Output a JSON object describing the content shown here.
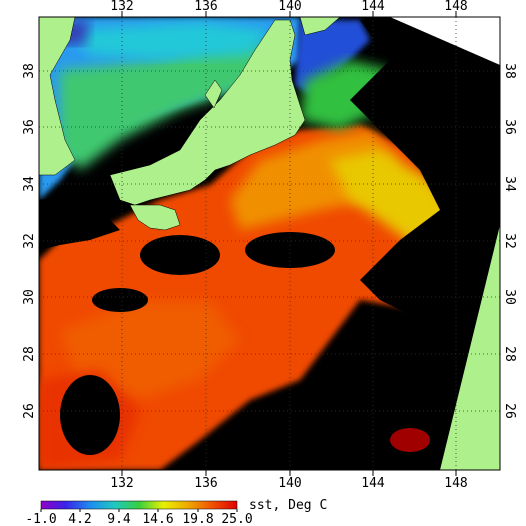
{
  "map": {
    "variable_label": "sst, Deg C",
    "lon_ticks": [
      "132",
      "136",
      "140",
      "144",
      "148"
    ],
    "lat_ticks": [
      "38",
      "36",
      "34",
      "32",
      "30",
      "28",
      "26"
    ],
    "colorbar_ticks": [
      "-1.0",
      "4.2",
      "9.4",
      "14.6",
      "19.8",
      "25.0"
    ],
    "colorbar_range": [
      -1.0,
      25.0
    ],
    "colors": {
      "land": "#aef08c",
      "cloud_mask": "#000000",
      "grid": "#333333",
      "outside": "#ffffff"
    },
    "colorbar_stops": [
      "#9000c8",
      "#3a24e8",
      "#1e8cf0",
      "#20c8c0",
      "#38d040",
      "#e8f000",
      "#f0a800",
      "#f05000",
      "#e00000"
    ]
  }
}
